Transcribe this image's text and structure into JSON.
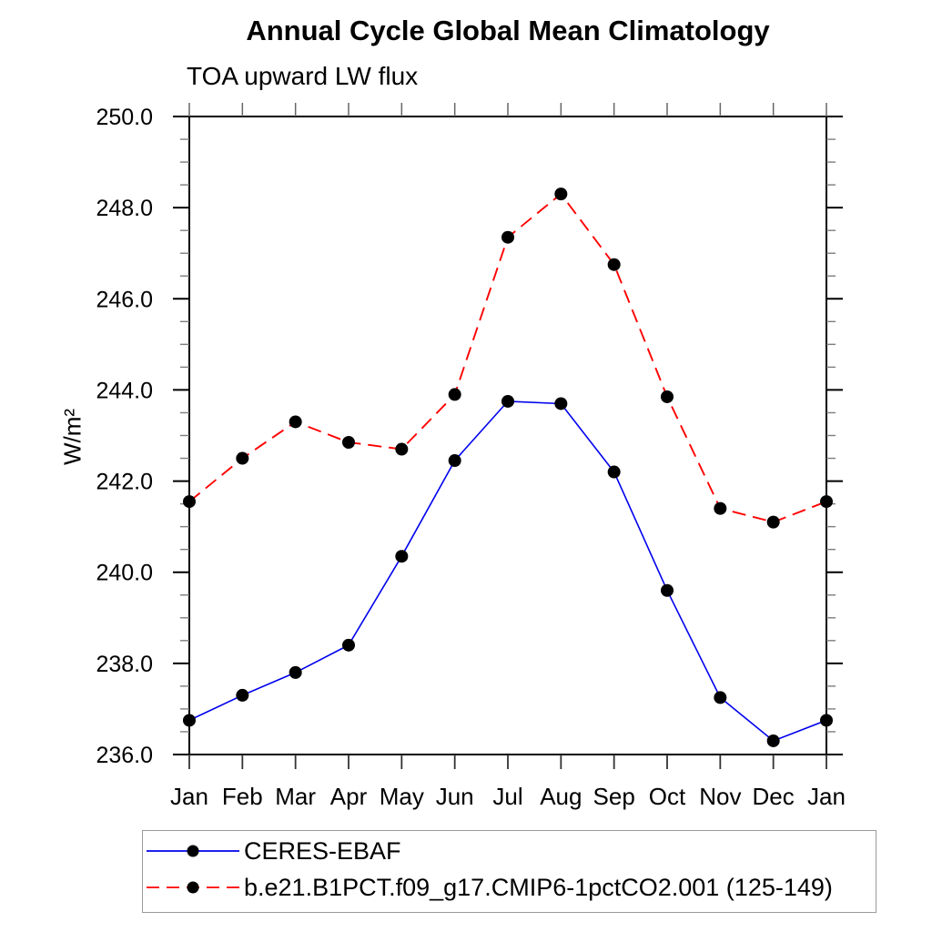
{
  "chart_data": {
    "type": "line",
    "title": "Annual Cycle Global Mean Climatology",
    "subtitle": "TOA upward LW flux",
    "ylabel": "W/m²",
    "xlabel": "",
    "x_categories": [
      "Jan",
      "Feb",
      "Mar",
      "Apr",
      "May",
      "Jun",
      "Jul",
      "Aug",
      "Sep",
      "Oct",
      "Nov",
      "Dec",
      "Jan"
    ],
    "series": [
      {
        "name": "CERES-EBAF",
        "line_style": "solid",
        "color": "#0000ee",
        "marker": "filled-circle",
        "marker_color": "#000000",
        "values": [
          236.75,
          237.3,
          237.8,
          238.4,
          240.35,
          242.45,
          243.75,
          243.7,
          242.2,
          239.6,
          237.25,
          236.3,
          236.75
        ]
      },
      {
        "name": "b.e21.B1PCT.f09_g17.CMIP6-1pctCO2.001 (125-149)",
        "line_style": "dashed",
        "color": "#ff0000",
        "marker": "filled-circle",
        "marker_color": "#000000",
        "values": [
          241.55,
          242.5,
          243.3,
          242.85,
          242.7,
          243.9,
          247.35,
          248.3,
          246.75,
          243.85,
          241.4,
          241.1,
          241.55
        ]
      }
    ],
    "ylim": [
      236,
      250
    ],
    "ytick_labels": [
      "236.0",
      "238.0",
      "240.0",
      "242.0",
      "244.0",
      "246.0",
      "248.0",
      "250.0"
    ],
    "ytick_step": 2,
    "yminor_step": 0.5,
    "grid": "off",
    "frame": "box-with-outward-ticks",
    "legend_position": "below-axis-left-box",
    "axis_color": "#000000",
    "minor_tick_color": "#7d7d7d"
  }
}
